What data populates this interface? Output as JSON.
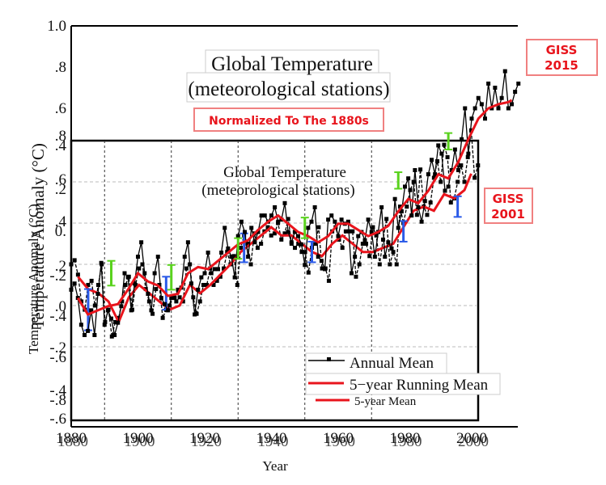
{
  "chart_data": [
    {
      "type": "line",
      "name": "GISS 2015",
      "title": "Global Temperature",
      "subtitle": "(meteorological stations)",
      "annotation": "Normalized To The 1880s",
      "badge": "GISS\n2015",
      "xlabel": "Year",
      "ylabel": "Temperature Anomaly (°C)",
      "xlim": [
        1880,
        2015
      ],
      "ylim": [
        -0.8,
        1.0
      ],
      "xticks": [
        "1880",
        "1900",
        "1920",
        "1940",
        "1960",
        "1980",
        "2000"
      ],
      "yticks": [
        "1.0",
        ".8",
        ".6",
        ".4",
        ".2",
        "0.",
        "-.2",
        "-.4",
        "-.6",
        "-.8"
      ],
      "grid": true,
      "series": [
        {
          "name": "Annual Mean",
          "x": [
            1880,
            1881,
            1882,
            1883,
            1884,
            1885,
            1886,
            1887,
            1888,
            1889,
            1890,
            1891,
            1892,
            1893,
            1894,
            1895,
            1896,
            1897,
            1898,
            1899,
            1900,
            1901,
            1902,
            1903,
            1904,
            1905,
            1906,
            1907,
            1908,
            1909,
            1910,
            1911,
            1912,
            1913,
            1914,
            1915,
            1916,
            1917,
            1918,
            1919,
            1920,
            1921,
            1922,
            1923,
            1924,
            1925,
            1926,
            1927,
            1928,
            1929,
            1930,
            1931,
            1932,
            1933,
            1934,
            1935,
            1936,
            1937,
            1938,
            1939,
            1940,
            1941,
            1942,
            1943,
            1944,
            1945,
            1946,
            1947,
            1948,
            1949,
            1950,
            1951,
            1952,
            1953,
            1954,
            1955,
            1956,
            1957,
            1958,
            1959,
            1960,
            1961,
            1962,
            1963,
            1964,
            1965,
            1966,
            1967,
            1968,
            1969,
            1970,
            1971,
            1972,
            1973,
            1974,
            1975,
            1976,
            1977,
            1978,
            1979,
            1980,
            1981,
            1982,
            1983,
            1984,
            1985,
            1986,
            1987,
            1988,
            1989,
            1990,
            1991,
            1992,
            1993,
            1994,
            1995,
            1996,
            1997,
            1998,
            1999,
            2000,
            2001,
            2002,
            2003,
            2004,
            2005,
            2006,
            2007,
            2008,
            2009,
            2010,
            2011,
            2012,
            2013,
            2014
          ],
          "y": [
            -0.28,
            -0.25,
            -0.32,
            -0.45,
            -0.5,
            -0.48,
            -0.38,
            -0.5,
            -0.3,
            -0.15,
            -0.45,
            -0.38,
            -0.42,
            -0.5,
            -0.44,
            -0.36,
            -0.2,
            -0.22,
            -0.38,
            -0.25,
            -0.12,
            -0.05,
            -0.2,
            -0.3,
            -0.38,
            -0.2,
            -0.12,
            -0.32,
            -0.35,
            -0.38,
            -0.32,
            -0.32,
            -0.28,
            -0.27,
            -0.12,
            -0.05,
            -0.25,
            -0.4,
            -0.28,
            -0.22,
            -0.2,
            -0.1,
            -0.2,
            -0.18,
            -0.18,
            -0.1,
            0.02,
            -0.08,
            -0.12,
            -0.22,
            -0.02,
            0.05,
            0.0,
            -0.12,
            0.02,
            -0.05,
            0.0,
            0.08,
            0.08,
            0.05,
            0.08,
            0.12,
            0.05,
            0.06,
            0.14,
            0.0,
            -0.05,
            0.0,
            -0.02,
            -0.06,
            -0.16,
            0.02,
            0.05,
            0.12,
            -0.12,
            -0.14,
            -0.18,
            0.06,
            0.08,
            0.05,
            -0.02,
            0.06,
            0.04,
            0.05,
            -0.2,
            -0.12,
            -0.02,
            0.0,
            -0.04,
            0.06,
            0.0,
            -0.12,
            0.0,
            0.12,
            -0.12,
            -0.05,
            -0.08,
            0.16,
            0.02,
            0.1,
            0.22,
            0.26,
            0.08,
            0.3,
            0.12,
            0.05,
            0.15,
            0.28,
            0.35,
            0.28,
            0.42,
            0.38,
            0.2,
            0.22,
            0.3,
            0.4,
            0.3,
            0.45,
            0.6,
            0.38,
            0.55,
            0.6,
            0.65,
            0.62,
            0.55,
            0.72,
            0.6,
            0.7,
            0.6,
            0.65,
            0.78,
            0.6,
            0.62,
            0.68,
            0.72
          ]
        },
        {
          "name": "5-year Running Mean",
          "x": [
            1882,
            1885,
            1888,
            1891,
            1894,
            1897,
            1900,
            1903,
            1906,
            1909,
            1912,
            1915,
            1918,
            1921,
            1924,
            1927,
            1930,
            1933,
            1936,
            1939,
            1942,
            1945,
            1948,
            1951,
            1954,
            1957,
            1960,
            1963,
            1966,
            1969,
            1972,
            1975,
            1978,
            1981,
            1984,
            1987,
            1990,
            1993,
            1996,
            1999,
            2002,
            2005,
            2008,
            2011,
            2012
          ],
          "y": [
            -0.32,
            -0.4,
            -0.38,
            -0.36,
            -0.35,
            -0.28,
            -0.2,
            -0.24,
            -0.26,
            -0.31,
            -0.3,
            -0.2,
            -0.17,
            -0.18,
            -0.14,
            -0.1,
            -0.06,
            -0.04,
            0.01,
            0.05,
            0.08,
            0.04,
            0.0,
            -0.02,
            -0.05,
            -0.02,
            0.04,
            0.04,
            0.01,
            -0.02,
            0.0,
            0.03,
            0.1,
            0.16,
            0.14,
            0.2,
            0.28,
            0.26,
            0.34,
            0.45,
            0.55,
            0.6,
            0.62,
            0.63,
            0.64
          ]
        }
      ],
      "error_bars_green": [
        {
          "x": 1892,
          "y": -0.2,
          "err": 0.06
        },
        {
          "x": 1910,
          "y": -0.22,
          "err": 0.06
        },
        {
          "x": 1930,
          "y": -0.08,
          "err": 0.05
        },
        {
          "x": 1950,
          "y": 0.02,
          "err": 0.05
        },
        {
          "x": 1978,
          "y": 0.25,
          "err": 0.04
        },
        {
          "x": 1993,
          "y": 0.44,
          "err": 0.04
        }
      ]
    },
    {
      "type": "line",
      "name": "GISS 2001",
      "title": "Global Temperature",
      "subtitle": "(meteorological stations)",
      "badge": "GISS\n2001",
      "xlabel": "Year",
      "ylabel": "Temperature Anomaly (°C)",
      "xlim": [
        1880,
        2000
      ],
      "ylim": [
        -0.6,
        0.4
      ],
      "xticks": [
        "1880",
        "1900",
        "1920",
        "1940",
        "1960",
        "1980",
        "2000"
      ],
      "yticks": [
        ".4",
        ".2",
        "0",
        "-.2",
        "-.4",
        "-.6"
      ],
      "grid": true,
      "series": [
        {
          "name": "Annual Mean",
          "x": [
            1880,
            1881,
            1882,
            1883,
            1884,
            1885,
            1886,
            1887,
            1888,
            1889,
            1890,
            1891,
            1892,
            1893,
            1894,
            1895,
            1896,
            1897,
            1898,
            1899,
            1900,
            1901,
            1902,
            1903,
            1904,
            1905,
            1906,
            1907,
            1908,
            1909,
            1910,
            1911,
            1912,
            1913,
            1914,
            1915,
            1916,
            1917,
            1918,
            1919,
            1920,
            1921,
            1922,
            1923,
            1924,
            1925,
            1926,
            1927,
            1928,
            1929,
            1930,
            1931,
            1932,
            1933,
            1934,
            1935,
            1936,
            1937,
            1938,
            1939,
            1940,
            1941,
            1942,
            1943,
            1944,
            1945,
            1946,
            1947,
            1948,
            1949,
            1950,
            1951,
            1952,
            1953,
            1954,
            1955,
            1956,
            1957,
            1958,
            1959,
            1960,
            1961,
            1962,
            1963,
            1964,
            1965,
            1966,
            1967,
            1968,
            1969,
            1970,
            1971,
            1972,
            1973,
            1974,
            1975,
            1976,
            1977,
            1978,
            1979,
            1980,
            1981,
            1982,
            1983,
            1984,
            1985,
            1986,
            1987,
            1988,
            1989,
            1990,
            1991,
            1992,
            1993,
            1994,
            1995,
            1996,
            1997,
            1998,
            1999,
            2000
          ],
          "y": [
            -0.2,
            -0.18,
            -0.25,
            -0.38,
            -0.42,
            -0.3,
            -0.28,
            -0.4,
            -0.3,
            -0.2,
            -0.48,
            -0.42,
            -0.55,
            -0.48,
            -0.46,
            -0.38,
            -0.3,
            -0.26,
            -0.42,
            -0.3,
            -0.22,
            -0.2,
            -0.32,
            -0.38,
            -0.44,
            -0.32,
            -0.3,
            -0.46,
            -0.42,
            -0.4,
            -0.36,
            -0.38,
            -0.36,
            -0.38,
            -0.22,
            -0.2,
            -0.36,
            -0.44,
            -0.38,
            -0.3,
            -0.3,
            -0.22,
            -0.3,
            -0.28,
            -0.26,
            -0.22,
            -0.14,
            -0.2,
            -0.16,
            -0.3,
            -0.12,
            -0.06,
            -0.1,
            -0.2,
            -0.05,
            -0.12,
            -0.1,
            -0.04,
            -0.02,
            -0.06,
            -0.05,
            0.0,
            -0.08,
            -0.05,
            0.02,
            -0.1,
            -0.12,
            -0.1,
            -0.14,
            -0.14,
            -0.24,
            -0.12,
            -0.1,
            -0.02,
            -0.22,
            -0.22,
            -0.28,
            -0.04,
            -0.02,
            -0.08,
            -0.12,
            -0.04,
            -0.04,
            -0.04,
            -0.26,
            -0.2,
            -0.1,
            -0.1,
            -0.16,
            -0.02,
            -0.06,
            -0.2,
            -0.08,
            0.02,
            -0.2,
            -0.14,
            -0.2,
            0.08,
            0.0,
            0.08,
            0.16,
            0.2,
            0.04,
            0.26,
            0.08,
            0.04,
            0.1,
            0.22,
            0.3,
            0.2,
            0.38,
            0.32,
            0.1,
            0.12,
            0.2,
            0.28,
            0.2,
            0.32,
            0.45,
            0.22,
            0.28
          ]
        },
        {
          "name": "5-year Mean",
          "x": [
            1882,
            1885,
            1888,
            1891,
            1894,
            1897,
            1900,
            1903,
            1906,
            1909,
            1912,
            1915,
            1918,
            1921,
            1924,
            1927,
            1930,
            1933,
            1936,
            1939,
            1942,
            1945,
            1948,
            1951,
            1954,
            1957,
            1960,
            1963,
            1966,
            1969,
            1972,
            1975,
            1978,
            1981,
            1984,
            1987,
            1990,
            1993,
            1996,
            1998
          ],
          "y": [
            -0.26,
            -0.32,
            -0.34,
            -0.38,
            -0.48,
            -0.36,
            -0.3,
            -0.34,
            -0.38,
            -0.42,
            -0.4,
            -0.3,
            -0.34,
            -0.3,
            -0.25,
            -0.2,
            -0.14,
            -0.1,
            -0.06,
            -0.02,
            -0.06,
            -0.06,
            -0.1,
            -0.14,
            -0.16,
            -0.1,
            -0.06,
            -0.1,
            -0.14,
            -0.14,
            -0.12,
            -0.1,
            -0.02,
            0.06,
            0.08,
            0.06,
            0.14,
            0.12,
            0.16,
            0.24
          ]
        }
      ],
      "error_bars_blue": [
        {
          "x": 1885,
          "y": -0.42,
          "err": 0.1
        },
        {
          "x": 1908,
          "y": -0.34,
          "err": 0.08
        },
        {
          "x": 1931,
          "y": -0.12,
          "err": 0.07
        },
        {
          "x": 1951,
          "y": -0.14,
          "err": 0.05
        },
        {
          "x": 1978,
          "y": -0.04,
          "err": 0.05
        },
        {
          "x": 1994,
          "y": 0.08,
          "err": 0.05
        }
      ]
    }
  ],
  "legend": {
    "items": [
      "Annual Mean",
      "5−year Running Mean",
      "5-year Mean"
    ],
    "placement": "bottom-right"
  },
  "colors": {
    "annual": "#000000",
    "running_mean": "#e8141c",
    "error_green": "#5ad21e",
    "error_blue": "#2a5ae8",
    "badge": "#e8141c"
  }
}
